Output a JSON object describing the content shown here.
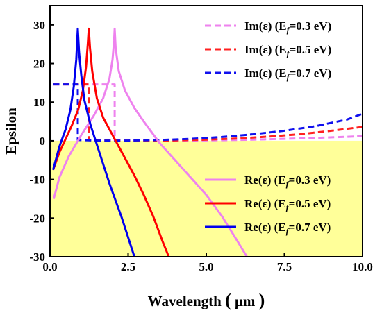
{
  "chart_data": {
    "type": "line",
    "xlabel": "Wavelength",
    "xlabel_unit": "μm",
    "ylabel": "Epsilon",
    "xlim": [
      0,
      10
    ],
    "ylim": [
      -30,
      35
    ],
    "xticks": [
      "0.0",
      "2.5",
      "5.0",
      "7.5",
      "10.0"
    ],
    "yticks": [
      "-30",
      "-20",
      "-10",
      "0",
      "10",
      "20",
      "30"
    ],
    "grid": false,
    "negative_region_fill": "#ffff99",
    "legend_top_right": [
      "im_03",
      "im_05",
      "im_07"
    ],
    "legend_bottom_right": [
      "re_03",
      "re_05",
      "re_07"
    ],
    "series": [
      {
        "id": "im_03",
        "label_main": "Im(ε) (E",
        "label_sub": "f",
        "label_tail": "=0.3 eV)",
        "color": "#ee82ee",
        "dash": true,
        "points": [
          [
            0.1,
            14.6
          ],
          [
            0.5,
            14.6
          ],
          [
            1.0,
            14.6
          ],
          [
            1.5,
            14.6
          ],
          [
            2.0,
            14.6
          ],
          [
            2.07,
            14.6
          ],
          [
            2.07,
            0.2
          ],
          [
            2.5,
            0.05
          ],
          [
            3.5,
            0.0
          ],
          [
            4.5,
            0.05
          ],
          [
            5.5,
            0.15
          ],
          [
            6.5,
            0.3
          ],
          [
            7.5,
            0.5
          ],
          [
            8.5,
            0.75
          ],
          [
            9.5,
            1.05
          ],
          [
            10.0,
            1.2
          ]
        ]
      },
      {
        "id": "im_05",
        "label_main": "Im(ε) (E",
        "label_sub": "f",
        "label_tail": "=0.5 eV)",
        "color": "#ff2020",
        "dash": true,
        "points": [
          [
            0.1,
            14.6
          ],
          [
            0.5,
            14.6
          ],
          [
            1.0,
            14.6
          ],
          [
            1.24,
            14.6
          ],
          [
            1.24,
            0.2
          ],
          [
            2.0,
            0.05
          ],
          [
            3.0,
            0.0
          ],
          [
            4.0,
            0.1
          ],
          [
            5.0,
            0.3
          ],
          [
            6.0,
            0.6
          ],
          [
            7.0,
            1.1
          ],
          [
            8.0,
            1.7
          ],
          [
            9.0,
            2.6
          ],
          [
            10.0,
            3.6
          ]
        ]
      },
      {
        "id": "im_07",
        "label_main": "Im(ε) (E",
        "label_sub": "f",
        "label_tail": "=0.7 eV)",
        "color": "#1010ee",
        "dash": true,
        "points": [
          [
            0.1,
            14.6
          ],
          [
            0.5,
            14.6
          ],
          [
            0.89,
            14.6
          ],
          [
            0.89,
            0.2
          ],
          [
            1.5,
            0.05
          ],
          [
            2.5,
            0.05
          ],
          [
            3.5,
            0.2
          ],
          [
            4.5,
            0.5
          ],
          [
            5.5,
            1.0
          ],
          [
            6.5,
            1.7
          ],
          [
            7.5,
            2.6
          ],
          [
            8.5,
            3.8
          ],
          [
            9.5,
            5.5
          ],
          [
            10.0,
            7.0
          ]
        ]
      },
      {
        "id": "re_03",
        "label_main": "Re(ε) (E",
        "label_sub": "f",
        "label_tail": "=0.3 eV)",
        "color": "#ee82ee",
        "dash": false,
        "points": [
          [
            0.12,
            -15
          ],
          [
            0.3,
            -9.5
          ],
          [
            0.6,
            -4
          ],
          [
            1.0,
            1.5
          ],
          [
            1.4,
            6.5
          ],
          [
            1.7,
            11
          ],
          [
            1.9,
            16
          ],
          [
            2.0,
            21
          ],
          [
            2.05,
            26
          ],
          [
            2.07,
            29
          ],
          [
            2.1,
            24
          ],
          [
            2.2,
            18
          ],
          [
            2.4,
            13
          ],
          [
            2.7,
            8.5
          ],
          [
            3.0,
            5.0
          ],
          [
            3.5,
            -0.5
          ],
          [
            4.0,
            -5
          ],
          [
            4.5,
            -9.5
          ],
          [
            5.0,
            -14
          ],
          [
            5.5,
            -19.5
          ],
          [
            6.0,
            -26
          ],
          [
            6.3,
            -30
          ]
        ]
      },
      {
        "id": "re_05",
        "label_main": "Re(ε) (E",
        "label_sub": "f",
        "label_tail": "=0.5 eV)",
        "color": "#ff0000",
        "dash": false,
        "points": [
          [
            0.1,
            -7.5
          ],
          [
            0.3,
            -3
          ],
          [
            0.5,
            0.5
          ],
          [
            0.7,
            4
          ],
          [
            0.9,
            8
          ],
          [
            1.05,
            13
          ],
          [
            1.15,
            19
          ],
          [
            1.21,
            25
          ],
          [
            1.24,
            29
          ],
          [
            1.28,
            24
          ],
          [
            1.35,
            18
          ],
          [
            1.5,
            11
          ],
          [
            1.7,
            6
          ],
          [
            2.0,
            1.5
          ],
          [
            2.3,
            -3
          ],
          [
            2.7,
            -9
          ],
          [
            3.0,
            -14
          ],
          [
            3.3,
            -19.5
          ],
          [
            3.6,
            -26
          ],
          [
            3.8,
            -30
          ]
        ]
      },
      {
        "id": "re_07",
        "label_main": "Re(ε) (E",
        "label_sub": "f",
        "label_tail": "=0.7 eV)",
        "color": "#0000ee",
        "dash": false,
        "points": [
          [
            0.1,
            -7.5
          ],
          [
            0.3,
            -1.5
          ],
          [
            0.5,
            3
          ],
          [
            0.65,
            8
          ],
          [
            0.76,
            14
          ],
          [
            0.84,
            21
          ],
          [
            0.89,
            29
          ],
          [
            0.93,
            23
          ],
          [
            1.0,
            17
          ],
          [
            1.1,
            10.5
          ],
          [
            1.3,
            4
          ],
          [
            1.5,
            -1
          ],
          [
            1.7,
            -6
          ],
          [
            1.9,
            -11
          ],
          [
            2.1,
            -15.5
          ],
          [
            2.3,
            -20
          ],
          [
            2.5,
            -25
          ],
          [
            2.7,
            -30
          ]
        ]
      }
    ]
  }
}
